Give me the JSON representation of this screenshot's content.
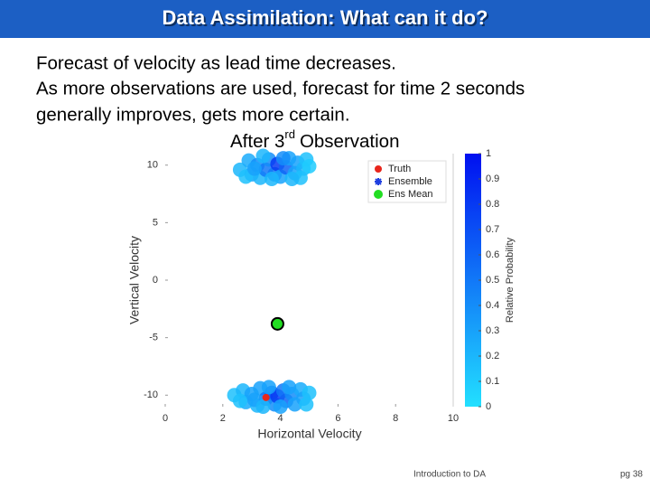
{
  "slide": {
    "title": "Data Assimilation: What can it do?",
    "body": [
      "Forecast of velocity as lead time decreases.",
      "As more observations are used, forecast for time 2 seconds",
      "generally improves, gets more certain."
    ],
    "caption": [
      "After 3",
      "rd",
      "Observation"
    ],
    "footer": "Introduction to DA",
    "page": "pg 38"
  },
  "chart_data": {
    "type": "scatter",
    "x_label": "Horizontal Velocity",
    "y_label": "Vertical Velocity",
    "xlim": [
      0,
      10
    ],
    "ylim": [
      -11,
      11
    ],
    "xticks": [
      0,
      2,
      4,
      6,
      8,
      10
    ],
    "yticks": [
      -10,
      -5,
      0,
      5,
      10
    ],
    "legend": "top-right",
    "series": [
      {
        "name": "Ensemble",
        "color": "#1f3fe0",
        "x": [
          2.6,
          2.9,
          3.0,
          3.2,
          3.3,
          3.5,
          3.6,
          3.8,
          3.9,
          4.0,
          4.2,
          4.3,
          4.5,
          4.6,
          4.8,
          4.9,
          2.8,
          3.4,
          4.1,
          4.7,
          3.1,
          5.0,
          3.7,
          4.4,
          2.4,
          2.7,
          2.8,
          3.0,
          3.2,
          3.3,
          3.5,
          3.7,
          3.8,
          3.9,
          4.1,
          4.2,
          4.4,
          4.5,
          4.7,
          4.8,
          5.0,
          3.1,
          3.6,
          4.3,
          2.6,
          4.9,
          3.4,
          4.0
        ],
        "y": [
          9.6,
          10.4,
          9.2,
          10.0,
          8.9,
          9.6,
          10.5,
          9.2,
          10.1,
          9.0,
          9.8,
          10.6,
          9.3,
          10.2,
          9.7,
          10.5,
          9.0,
          10.8,
          10.6,
          8.9,
          9.7,
          9.9,
          8.8,
          8.8,
          -10.0,
          -9.6,
          -10.6,
          -9.9,
          -10.9,
          -9.4,
          -10.3,
          -9.8,
          -10.8,
          -10.1,
          -9.6,
          -10.5,
          -9.9,
          -10.8,
          -9.5,
          -10.3,
          -9.8,
          -10.4,
          -9.3,
          -9.3,
          -10.5,
          -10.8,
          -11.0,
          -11.0
        ],
        "probability": [
          0.2,
          0.25,
          0.3,
          0.4,
          0.2,
          0.5,
          0.4,
          0.5,
          0.8,
          0.3,
          0.6,
          0.3,
          0.3,
          0.3,
          0.2,
          0.15,
          0.15,
          0.2,
          0.4,
          0.15,
          0.3,
          0.1,
          0.2,
          0.2,
          0.15,
          0.2,
          0.25,
          0.3,
          0.2,
          0.3,
          0.5,
          0.6,
          0.4,
          0.8,
          0.5,
          0.6,
          0.4,
          0.3,
          0.25,
          0.3,
          0.15,
          0.3,
          0.3,
          0.3,
          0.15,
          0.15,
          0.2,
          0.3
        ]
      },
      {
        "name": "Truth",
        "color": "#e8261c",
        "x": [
          3.5
        ],
        "y": [
          -10.2
        ]
      },
      {
        "name": "Ens Mean",
        "color": "#22dd22",
        "x": [
          3.9
        ],
        "y": [
          -3.8
        ]
      }
    ],
    "colorbar": {
      "label": "Relative Probability",
      "lim": [
        0,
        1
      ],
      "ticks": [
        0,
        0.1,
        0.2,
        0.3,
        0.4,
        0.5,
        0.6,
        0.7,
        0.8,
        0.9,
        1
      ],
      "colors": [
        "#22e0ff",
        "#0010f0"
      ]
    }
  }
}
